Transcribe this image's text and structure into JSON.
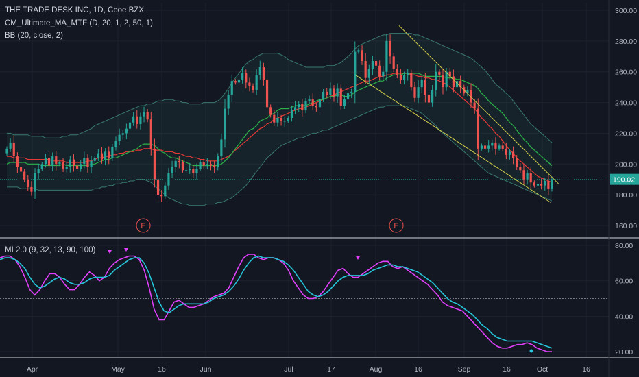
{
  "legend": {
    "symbol": "THE TRADE DESK INC, 1D, Cboe BZX",
    "indicator1": "CM_Ultimate_MA_MTF (D, 20, 1, 2, 50, 1)",
    "indicator2": "BB (20, close, 2)",
    "indicator3": "MI 2.0 (9, 32, 13, 90, 100)"
  },
  "colors": {
    "background": "#131722",
    "up": "#26a69a",
    "down": "#ef5350",
    "ma_short": "#2bb34a",
    "ma_long": "#e53935",
    "bb_band": "#3a7a6f",
    "trendline": "#d4cf4a",
    "mi_fast": "#e040fb",
    "mi_slow": "#26c6da",
    "last_price_tag": "#26a69a"
  },
  "chart_data": [
    {
      "type": "candlestick",
      "symbol": "THE TRADE DESK INC",
      "timeframe": "1D",
      "exchange": "Cboe BZX",
      "x_tick_labels": [
        "Apr",
        "May",
        "16",
        "Jun",
        "Jul",
        "17",
        "Aug",
        "16",
        "Sep",
        "16",
        "Oct",
        "16"
      ],
      "y_tick_labels": [
        "160.00",
        "180.00",
        "200.00",
        "220.00",
        "240.00",
        "260.00",
        "280.00",
        "300.00"
      ],
      "ylim": [
        150,
        305
      ],
      "last_price": "190.02",
      "earnings_markers": [
        "E",
        "E"
      ],
      "close": [
        210,
        214,
        205,
        198,
        195,
        190,
        185,
        182,
        194,
        197,
        200,
        204,
        199,
        205,
        200,
        201,
        197,
        198,
        203,
        199,
        197,
        200,
        204,
        198,
        202,
        204,
        207,
        203,
        208,
        204,
        211,
        215,
        219,
        220,
        223,
        227,
        231,
        226,
        231,
        234,
        229,
        210,
        190,
        180,
        179,
        186,
        194,
        198,
        202,
        201,
        196,
        196,
        197,
        194,
        197,
        201,
        199,
        200,
        199,
        198,
        205,
        216,
        236,
        245,
        254,
        253,
        255,
        259,
        253,
        251,
        248,
        258,
        263,
        255,
        237,
        232,
        227,
        230,
        228,
        228,
        230,
        235,
        237,
        239,
        235,
        241,
        242,
        238,
        237,
        242,
        247,
        245,
        249,
        244,
        249,
        238,
        242,
        246,
        247,
        273,
        274,
        267,
        256,
        262,
        267,
        264,
        257,
        260,
        280,
        270,
        262,
        258,
        255,
        258,
        259,
        250,
        243,
        250,
        255,
        245,
        240,
        248,
        260,
        258,
        250,
        260,
        257,
        250,
        254,
        250,
        246,
        248,
        240,
        236,
        210,
        212,
        210,
        212,
        214,
        210,
        212,
        210,
        206,
        208,
        204,
        198,
        196,
        190,
        194,
        188,
        186,
        187,
        186,
        189,
        184,
        190
      ],
      "ma_short": [
        200,
        201,
        201,
        201,
        201,
        201,
        200,
        200,
        200,
        200,
        199,
        199,
        199,
        199,
        199,
        199,
        200,
        199,
        199,
        199,
        199,
        199,
        199,
        199,
        200,
        200,
        201,
        202,
        203,
        203,
        204,
        204,
        205,
        206,
        207,
        208,
        209,
        210,
        212,
        213,
        213,
        213,
        212,
        210,
        208,
        207,
        205,
        204,
        204,
        203,
        202,
        201,
        200,
        199,
        199,
        199,
        199,
        199,
        199,
        199,
        199,
        200,
        202,
        204,
        207,
        210,
        213,
        216,
        219,
        222,
        223,
        225,
        228,
        229,
        230,
        232,
        233,
        235,
        236,
        236,
        236,
        237,
        238,
        238,
        238,
        238,
        239,
        240,
        241,
        242,
        242,
        243,
        244,
        244,
        245,
        245,
        244,
        244,
        245,
        247,
        248,
        249,
        250,
        251,
        252,
        253,
        254,
        254,
        256,
        257,
        258,
        258,
        258,
        259,
        259,
        259,
        259,
        259,
        258,
        257,
        257,
        257,
        257,
        257,
        257,
        256,
        256,
        256,
        255,
        255,
        254,
        253,
        252,
        251,
        249,
        246,
        244,
        241,
        239,
        237,
        235,
        233,
        230,
        227,
        225,
        222,
        219,
        216,
        214,
        211,
        209,
        207,
        205,
        203,
        201,
        199
      ],
      "ma_long": [
        205,
        205,
        204,
        204,
        204,
        204,
        203,
        203,
        203,
        203,
        203,
        203,
        203,
        202,
        202,
        202,
        202,
        201,
        201,
        201,
        201,
        201,
        201,
        202,
        202,
        203,
        204,
        204,
        205,
        205,
        206,
        206,
        207,
        207,
        208,
        208,
        208,
        209,
        209,
        210,
        210,
        210,
        209,
        209,
        209,
        208,
        208,
        208,
        207,
        207,
        206,
        205,
        205,
        204,
        204,
        203,
        203,
        202,
        202,
        202,
        202,
        203,
        204,
        205,
        207,
        209,
        211,
        213,
        215,
        217,
        219,
        221,
        223,
        224,
        226,
        227,
        229,
        230,
        231,
        232,
        233,
        234,
        235,
        236,
        236,
        237,
        238,
        239,
        240,
        241,
        242,
        243,
        244,
        245,
        246,
        247,
        248,
        249,
        250,
        251,
        252,
        253,
        254,
        254,
        255,
        256,
        257,
        257,
        258,
        258,
        259,
        259,
        259,
        259,
        259,
        258,
        258,
        257,
        257,
        256,
        256,
        255,
        255,
        254,
        253,
        252,
        250,
        248,
        246,
        244,
        242,
        240,
        238,
        236,
        233,
        230,
        228,
        225,
        223,
        220,
        218,
        215,
        212,
        209,
        207,
        204,
        202,
        200,
        198,
        196,
        194,
        192,
        191,
        190,
        189,
        188
      ],
      "bb_upper": [
        220,
        220,
        219,
        219,
        219,
        219,
        219,
        218,
        218,
        218,
        218,
        217,
        217,
        217,
        217,
        217,
        218,
        218,
        219,
        219,
        219,
        220,
        221,
        222,
        223,
        225,
        226,
        227,
        228,
        229,
        230,
        231,
        232,
        233,
        234,
        235,
        236,
        237,
        238,
        238,
        239,
        239,
        240,
        241,
        241,
        242,
        242,
        242,
        241,
        241,
        240,
        240,
        239,
        239,
        239,
        239,
        240,
        240,
        240,
        240,
        241,
        243,
        246,
        249,
        253,
        256,
        259,
        262,
        265,
        267,
        268,
        270,
        271,
        272,
        272,
        272,
        272,
        272,
        271,
        270,
        268,
        267,
        266,
        265,
        264,
        263,
        263,
        263,
        263,
        263,
        263,
        264,
        264,
        264,
        265,
        266,
        268,
        270,
        272,
        275,
        277,
        278,
        279,
        280,
        281,
        282,
        283,
        284,
        284,
        285,
        285,
        285,
        285,
        285,
        285,
        285,
        284,
        284,
        283,
        282,
        281,
        280,
        279,
        278,
        277,
        276,
        275,
        274,
        273,
        272,
        271,
        270,
        269,
        267,
        265,
        263,
        261,
        258,
        255,
        252,
        250,
        248,
        246,
        244,
        241,
        238,
        235,
        232,
        229,
        226,
        224,
        222,
        220,
        218,
        216,
        214
      ],
      "bb_lower": [
        185,
        185,
        185,
        185,
        184,
        184,
        184,
        184,
        184,
        183,
        183,
        183,
        183,
        183,
        183,
        183,
        183,
        183,
        183,
        183,
        183,
        183,
        183,
        183,
        183,
        184,
        184,
        185,
        185,
        186,
        186,
        187,
        187,
        188,
        188,
        189,
        189,
        190,
        190,
        190,
        189,
        188,
        186,
        184,
        182,
        180,
        178,
        177,
        176,
        175,
        174,
        174,
        173,
        173,
        173,
        173,
        173,
        174,
        174,
        174,
        175,
        175,
        176,
        177,
        178,
        180,
        182,
        184,
        186,
        189,
        192,
        195,
        198,
        201,
        204,
        206,
        208,
        210,
        212,
        213,
        214,
        215,
        216,
        217,
        217,
        218,
        219,
        220,
        220,
        221,
        222,
        222,
        223,
        224,
        225,
        226,
        227,
        228,
        229,
        230,
        231,
        232,
        233,
        234,
        235,
        236,
        237,
        237,
        238,
        238,
        238,
        238,
        238,
        238,
        237,
        236,
        235,
        234,
        233,
        231,
        229,
        227,
        225,
        222,
        220,
        218,
        216,
        214,
        212,
        210,
        208,
        206,
        204,
        202,
        200,
        198,
        196,
        194,
        193,
        192,
        191,
        190,
        189,
        188,
        187,
        186,
        185,
        184,
        183,
        182,
        181,
        180,
        179,
        178,
        177,
        176
      ]
    },
    {
      "type": "line",
      "name": "MI 2.0",
      "y_tick_labels": [
        "20.00",
        "40.00",
        "60.00",
        "80.00"
      ],
      "ylim": [
        17,
        82
      ],
      "reference_lines": [
        50,
        20
      ],
      "x_tick_labels": [
        "Apr",
        "May",
        "16",
        "Jun",
        "Jul",
        "17",
        "Aug",
        "16",
        "Sep",
        "16",
        "Oct",
        "16"
      ],
      "series": [
        {
          "values": [
            73,
            74,
            74,
            72,
            68,
            62,
            55,
            52,
            55,
            60,
            64,
            64,
            62,
            58,
            55,
            55,
            58,
            62,
            65,
            63,
            60,
            62,
            67,
            70,
            72,
            73,
            74,
            74,
            72,
            66,
            56,
            44,
            38,
            38,
            43,
            48,
            49,
            47,
            45,
            45,
            46,
            47,
            49,
            51,
            52,
            53,
            56,
            62,
            68,
            73,
            75,
            75,
            73,
            72,
            73,
            73,
            72,
            70,
            66,
            60,
            56,
            52,
            50,
            50,
            51,
            54,
            58,
            62,
            66,
            67,
            64,
            62,
            62,
            64,
            66,
            68,
            70,
            71,
            71,
            68,
            67,
            68,
            66,
            64,
            62,
            60,
            58,
            55,
            52,
            48,
            46,
            45,
            44,
            43,
            40,
            37,
            34,
            31,
            28,
            25,
            23,
            22,
            22,
            23,
            24,
            24,
            25,
            24,
            22,
            21,
            20,
            20
          ]
        },
        {
          "values": [
            72,
            73,
            73,
            72,
            70,
            67,
            62,
            58,
            56,
            57,
            59,
            61,
            62,
            61,
            59,
            58,
            58,
            59,
            61,
            62,
            62,
            62,
            63,
            66,
            68,
            70,
            72,
            73,
            73,
            70,
            64,
            56,
            48,
            43,
            42,
            44,
            46,
            47,
            47,
            47,
            47,
            47,
            48,
            50,
            51,
            52,
            54,
            57,
            61,
            66,
            70,
            73,
            74,
            73,
            73,
            73,
            72,
            71,
            69,
            66,
            62,
            58,
            54,
            52,
            51,
            52,
            54,
            57,
            60,
            62,
            63,
            63,
            63,
            63,
            64,
            66,
            67,
            68,
            69,
            69,
            68,
            68,
            67,
            66,
            65,
            63,
            61,
            59,
            56,
            53,
            50,
            48,
            47,
            45,
            43,
            41,
            38,
            35,
            33,
            30,
            28,
            27,
            26,
            26,
            26,
            26,
            26,
            26,
            25,
            24,
            23,
            22
          ]
        }
      ]
    }
  ]
}
